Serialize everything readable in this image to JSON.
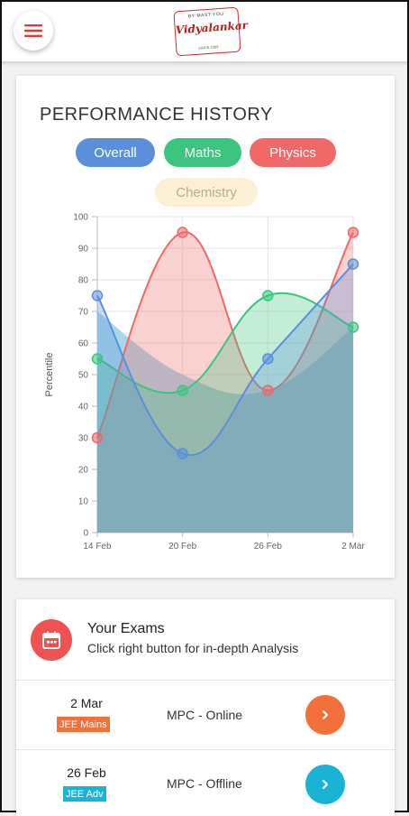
{
  "header": {
    "menu_icon": "hamburger-menu-icon",
    "logo": {
      "text_top": "BY MAST YOU",
      "text_main": "Vidyalankar",
      "text_bottom": "SINCE 1959",
      "color": "#c8322f"
    }
  },
  "performance": {
    "title": "PERFORMANCE HISTORY",
    "filters": [
      {
        "label": "Overall",
        "color": "#5b8fd9"
      },
      {
        "label": "Maths",
        "color": "#3dc47e"
      },
      {
        "label": "Physics",
        "color": "#f06868"
      },
      {
        "label": "Chemistry",
        "color": "#fbf0d6"
      }
    ]
  },
  "chart_data": {
    "type": "line",
    "x": [
      "14 Feb",
      "20 Feb",
      "26 Feb",
      "2 Mar"
    ],
    "ylabel": "Percentile",
    "ylim": [
      0,
      100
    ],
    "yticks": [
      0,
      10,
      20,
      30,
      40,
      50,
      60,
      70,
      80,
      90,
      100
    ],
    "grid": true,
    "smooth": true,
    "area": true,
    "series": [
      {
        "name": "Chemistry",
        "values": [
          70,
          50,
          45,
          65
        ],
        "color": "#9ad0e6"
      },
      {
        "name": "Physics",
        "values": [
          30,
          95,
          45,
          95
        ],
        "color": "#f06868"
      },
      {
        "name": "Maths",
        "values": [
          55,
          45,
          75,
          65
        ],
        "color": "#3dc47e"
      },
      {
        "name": "Overall",
        "values": [
          75,
          25,
          55,
          85
        ],
        "color": "#5b8fd9"
      }
    ]
  },
  "exams": {
    "title": "Your Exams",
    "subtitle": "Click right button for in-depth Analysis",
    "icon": "calendar-icon",
    "items": [
      {
        "date": "2 Mar",
        "badge": "JEE Mains",
        "badge_color": "#f2703c",
        "desc": "MPC - Online",
        "button_color": "#f2703c"
      },
      {
        "date": "26 Feb",
        "badge": "JEE Adv",
        "badge_color": "#1ab3d3",
        "desc": "MPC - Offline",
        "button_color": "#1ab3d3"
      }
    ]
  }
}
